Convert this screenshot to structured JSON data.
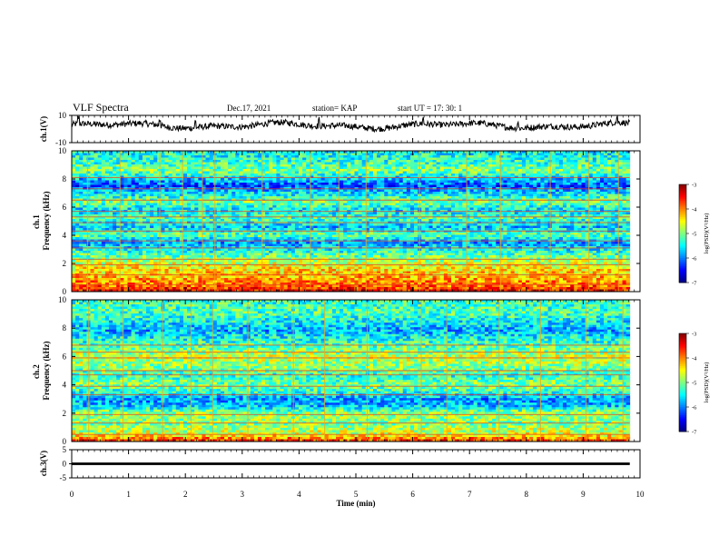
{
  "header": {
    "title": "VLF Spectra",
    "date": "Dec.17, 2021",
    "station": "station= KAP",
    "start": "start  UT =   17: 30: 1"
  },
  "chart_data": [
    {
      "type": "line",
      "name": "ch1-waveform",
      "ylabel": "ch.1(V)",
      "ylim": [
        -10,
        10
      ],
      "yticks": [
        "10",
        "-10"
      ],
      "xlim": [
        0,
        10
      ],
      "x_end": 9.82,
      "mean": 2.5,
      "amplitude": 3.0,
      "peak_times": [
        0.12,
        1.55,
        2.18,
        4.35,
        6.18,
        7.85,
        9.6
      ]
    },
    {
      "type": "heatmap",
      "name": "ch1-spectrogram",
      "ylabel": "ch.1\nFrequency (kHz)",
      "ylim": [
        0,
        10
      ],
      "xlim": [
        0,
        10
      ],
      "x_end": 9.82,
      "yticks": [
        "0",
        "2",
        "4",
        "6",
        "8",
        "10"
      ],
      "colorbar": {
        "label": "log(PSD)(V²/Hz)",
        "range": [
          -7,
          -3
        ],
        "ticks": [
          "-3",
          "-4",
          "-5",
          "-6",
          "-7"
        ]
      },
      "band_profile": [
        {
          "f": 0.0,
          "v": -3.4
        },
        {
          "f": 0.4,
          "v": -3.9
        },
        {
          "f": 1.0,
          "v": -4.2
        },
        {
          "f": 1.8,
          "v": -4.5
        },
        {
          "f": 2.4,
          "v": -5.0
        },
        {
          "f": 3.0,
          "v": -5.5
        },
        {
          "f": 3.5,
          "v": -5.9
        },
        {
          "f": 4.0,
          "v": -5.1
        },
        {
          "f": 4.6,
          "v": -5.7
        },
        {
          "f": 5.2,
          "v": -5.2
        },
        {
          "f": 5.8,
          "v": -5.6
        },
        {
          "f": 6.4,
          "v": -5.0
        },
        {
          "f": 7.0,
          "v": -5.6
        },
        {
          "f": 7.5,
          "v": -6.2
        },
        {
          "f": 8.0,
          "v": -5.7
        },
        {
          "f": 8.6,
          "v": -5.0
        },
        {
          "f": 9.2,
          "v": -5.3
        },
        {
          "f": 10.0,
          "v": -5.5
        }
      ],
      "tonal_lines_khz": [
        0.5,
        1.2,
        1.9,
        2.3,
        3.1,
        3.6,
        4.3,
        4.9,
        5.3,
        5.7,
        6.5,
        7.3,
        8.1
      ],
      "impulse_times": [
        0.28,
        0.85,
        1.55,
        1.95,
        2.3,
        2.52,
        3.35,
        4.2,
        4.7,
        5.18,
        6.12,
        6.95,
        7.55,
        8.42,
        9.1,
        9.62
      ]
    },
    {
      "type": "heatmap",
      "name": "ch2-spectrogram",
      "ylabel": "ch.2\nFrequency (kHz)",
      "ylim": [
        0,
        10
      ],
      "xlim": [
        0,
        10
      ],
      "x_end": 9.82,
      "yticks": [
        "0",
        "2",
        "4",
        "6",
        "8",
        "10"
      ],
      "colorbar": {
        "label": "log(PSD)(V²/Hz)",
        "range": [
          -7,
          -3
        ],
        "ticks": [
          "-3",
          "-4",
          "-5",
          "-6",
          "-7"
        ]
      },
      "band_profile": [
        {
          "f": 0.0,
          "v": -3.6
        },
        {
          "f": 0.5,
          "v": -4.6
        },
        {
          "f": 1.2,
          "v": -5.0
        },
        {
          "f": 2.0,
          "v": -4.9
        },
        {
          "f": 2.5,
          "v": -5.7
        },
        {
          "f": 3.0,
          "v": -5.9
        },
        {
          "f": 3.5,
          "v": -5.3
        },
        {
          "f": 4.0,
          "v": -5.0
        },
        {
          "f": 4.6,
          "v": -5.3
        },
        {
          "f": 5.4,
          "v": -4.9
        },
        {
          "f": 6.0,
          "v": -4.7
        },
        {
          "f": 6.6,
          "v": -5.1
        },
        {
          "f": 7.2,
          "v": -5.4
        },
        {
          "f": 7.8,
          "v": -5.8
        },
        {
          "f": 8.3,
          "v": -5.6
        },
        {
          "f": 9.0,
          "v": -5.2
        },
        {
          "f": 10.0,
          "v": -5.3
        }
      ],
      "tonal_lines_khz": [
        0.5,
        1.3,
        1.9,
        3.3,
        3.9,
        4.7,
        5.0,
        5.9,
        6.3,
        6.8
      ],
      "impulse_times": [
        0.3,
        0.9,
        1.6,
        2.1,
        2.48,
        3.1,
        3.9,
        4.45,
        5.2,
        6.15,
        6.6,
        7.52,
        8.25,
        9.05,
        9.7
      ]
    },
    {
      "type": "line",
      "name": "ch3-waveform",
      "ylabel": "ch.3(V)",
      "ylim": [
        -5,
        5
      ],
      "yticks": [
        "5",
        "0",
        "-5"
      ],
      "xlim": [
        0,
        10
      ],
      "x_end": 9.82,
      "band": [
        -0.45,
        0.45
      ]
    }
  ],
  "x_axis": {
    "label": "Time (min)",
    "ticks": [
      "0",
      "1",
      "2",
      "3",
      "4",
      "5",
      "6",
      "7",
      "8",
      "9",
      "10"
    ]
  }
}
